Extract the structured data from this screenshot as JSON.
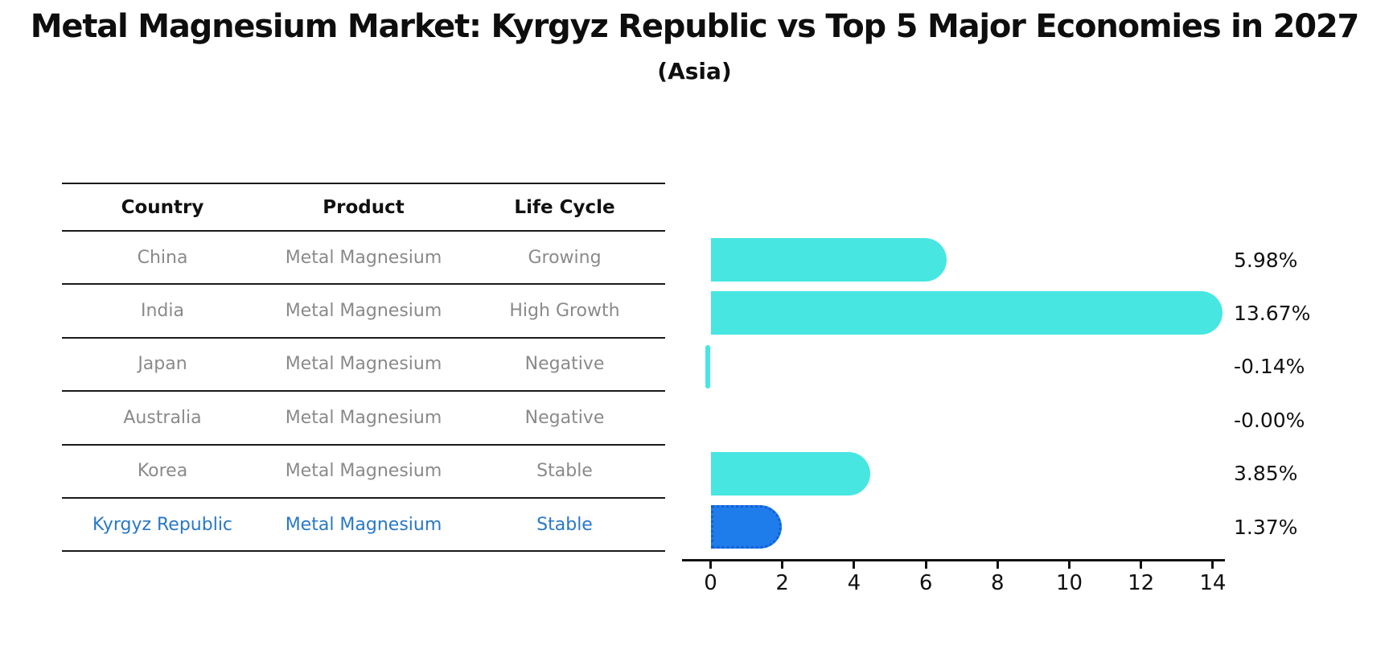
{
  "header": {
    "title": "Metal Magnesium Market: Kyrgyz Republic vs Top 5 Major Economies in 2027",
    "subtitle": "(Asia)"
  },
  "table": {
    "columns": [
      "Country",
      "Product",
      "Life Cycle"
    ],
    "rows": [
      {
        "country": "China",
        "product": "Metal Magnesium",
        "life_cycle": "Growing",
        "highlight": false
      },
      {
        "country": "India",
        "product": "Metal Magnesium",
        "life_cycle": "High Growth",
        "highlight": false
      },
      {
        "country": "Japan",
        "product": "Metal Magnesium",
        "life_cycle": "Negative",
        "highlight": false
      },
      {
        "country": "Australia",
        "product": "Metal Magnesium",
        "life_cycle": "Negative",
        "highlight": false
      },
      {
        "country": "Korea",
        "product": "Metal Magnesium",
        "life_cycle": "Stable",
        "highlight": false
      },
      {
        "country": "Kyrgyz Republic",
        "product": "Metal Magnesium",
        "life_cycle": "Stable",
        "highlight": true
      }
    ]
  },
  "chart_data": {
    "type": "bar",
    "orientation": "horizontal",
    "title": "Metal Magnesium Market: Kyrgyz Republic vs Top 5 Major Economies in 2027 (Asia)",
    "categories": [
      "China",
      "India",
      "Japan",
      "Australia",
      "Korea",
      "Kyrgyz Republic"
    ],
    "values": [
      5.98,
      13.67,
      -0.14,
      -0.0,
      3.85,
      1.37
    ],
    "value_labels": [
      "5.98%",
      "13.67%",
      "-0.14%",
      "-0.00%",
      "3.85%",
      "1.37%"
    ],
    "xlabel": "",
    "ylabel": "",
    "xlim": [
      0,
      14
    ],
    "xticks": [
      0,
      2,
      4,
      6,
      8,
      10,
      12,
      14
    ],
    "grid": false,
    "legend": false,
    "highlight_category": "Kyrgyz Republic",
    "colors": {
      "bar": "#47e6e1",
      "highlight_bar": "#1e7ceb",
      "highlight_border": "#135fd4",
      "highlight_text": "#2878c8",
      "row_text": "#8a8a8a",
      "axis": "#111111"
    }
  }
}
